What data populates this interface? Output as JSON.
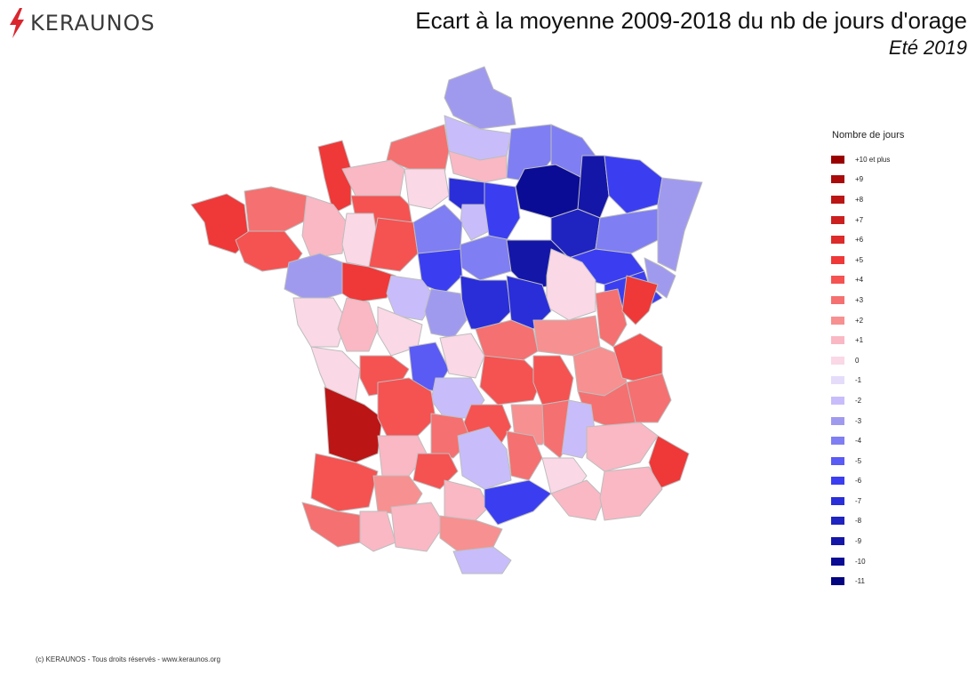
{
  "brand": {
    "name": "KERAUNOS",
    "icon": "lightning-icon",
    "icon_color": "#d9262e"
  },
  "title": {
    "main": "Ecart à la moyenne 2009-2018 du nb de jours d'orage",
    "sub": "Eté 2019"
  },
  "legend": {
    "title": "Nombre de jours",
    "items": [
      {
        "label": "+10 et plus",
        "color": "#990000"
      },
      {
        "label": "+9",
        "color": "#aa0a0a"
      },
      {
        "label": "+8",
        "color": "#bb1515"
      },
      {
        "label": "+7",
        "color": "#cc1f1f"
      },
      {
        "label": "+6",
        "color": "#dd2a2a"
      },
      {
        "label": "+5",
        "color": "#ef3838"
      },
      {
        "label": "+4",
        "color": "#f55252"
      },
      {
        "label": "+3",
        "color": "#f57070"
      },
      {
        "label": "+2",
        "color": "#f79090"
      },
      {
        "label": "+1",
        "color": "#f9b8c4"
      },
      {
        "label": "0",
        "color": "#fad8e6"
      },
      {
        "label": "-1",
        "color": "#e5dcfa"
      },
      {
        "label": "-2",
        "color": "#c8bdfa"
      },
      {
        "label": "-3",
        "color": "#a09aef"
      },
      {
        "label": "-4",
        "color": "#7f7ef2"
      },
      {
        "label": "-5",
        "color": "#5a5af5"
      },
      {
        "label": "-6",
        "color": "#3b3ef0"
      },
      {
        "label": "-7",
        "color": "#2a2ed8"
      },
      {
        "label": "-8",
        "color": "#1f23c0"
      },
      {
        "label": "-9",
        "color": "#1416a8"
      },
      {
        "label": "-10",
        "color": "#0a0c95"
      },
      {
        "label": "-11",
        "color": "#020480"
      }
    ]
  },
  "footer": "(c) KERAUNOS - Tous droits réservés - www.keraunos.org"
}
